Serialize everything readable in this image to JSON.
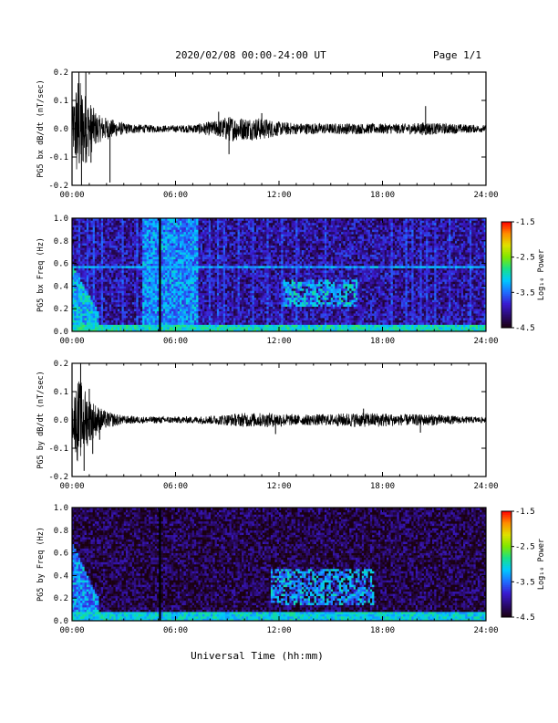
{
  "header": {
    "title": "2020/02/08  00:00-24:00 UT",
    "page": "Page 1/1"
  },
  "footer": {
    "xlabel": "Universal Time (hh:mm)"
  },
  "colors": {
    "trace": "#000000",
    "colormap": [
      "#1a0010",
      "#2a0a6e",
      "#3a1ad0",
      "#1f6cff",
      "#00c8ff",
      "#18e08a",
      "#7fe800",
      "#e0e000",
      "#ff8c00",
      "#ff0000"
    ]
  },
  "chart_data": [
    {
      "type": "line",
      "ylabel": "PG5 bx dB/dt (nT/sec)",
      "xlim": [
        0,
        24
      ],
      "ylim": [
        -0.2,
        0.2
      ],
      "xticks": [
        "00:00",
        "06:00",
        "12:00",
        "18:00",
        "24:00"
      ],
      "yticks": [
        "-0.2",
        "-0.1",
        "0.0",
        "0.1",
        "0.2"
      ],
      "envelope": {
        "x_hours": [
          0,
          0.3,
          0.6,
          1.0,
          1.5,
          2.0,
          3.0,
          4.0,
          5.0,
          6.0,
          7.0,
          8.0,
          8.5,
          9.0,
          10.0,
          11.0,
          12.0,
          13.0,
          14.0,
          15.0,
          16.0,
          17.0,
          18.0,
          19.0,
          20.0,
          20.5,
          21.0,
          22.0,
          23.0,
          24.0
        ],
        "half_amplitude": [
          0.06,
          0.2,
          0.15,
          0.1,
          0.05,
          0.04,
          0.02,
          0.015,
          0.012,
          0.012,
          0.015,
          0.025,
          0.03,
          0.045,
          0.04,
          0.04,
          0.025,
          0.02,
          0.02,
          0.018,
          0.02,
          0.018,
          0.018,
          0.018,
          0.02,
          0.025,
          0.02,
          0.018,
          0.015,
          0.012
        ]
      },
      "spikes": [
        [
          0.4,
          0.2
        ],
        [
          0.55,
          -0.2
        ],
        [
          0.8,
          0.2
        ],
        [
          1.1,
          -0.12
        ],
        [
          2.2,
          -0.19
        ],
        [
          8.5,
          0.06
        ],
        [
          9.1,
          -0.09
        ],
        [
          11.0,
          0.055
        ],
        [
          20.5,
          0.08
        ]
      ]
    },
    {
      "type": "heatmap",
      "ylabel": "PG5 bx Freq (Hz)",
      "xlim": [
        0,
        24
      ],
      "ylim": [
        0,
        1
      ],
      "xticks": [
        "00:00",
        "06:00",
        "12:00",
        "18:00",
        "24:00"
      ],
      "yticks": [
        "0.0",
        "0.2",
        "0.4",
        "0.6",
        "0.8",
        "1.0"
      ],
      "colorbar": {
        "label": "Log₁₀ Power",
        "ticks": [
          "-1.5",
          "-2.5",
          "-3.5",
          "-4.5"
        ],
        "range": [
          -4.5,
          -1.5
        ]
      },
      "base_log_power": -4.0,
      "features": [
        {
          "kind": "low_freq_band",
          "freq_max": 0.06,
          "log_power": -3.0
        },
        {
          "kind": "early_burst",
          "time_range": [
            0,
            1.5
          ],
          "freq_max": 0.6,
          "log_power": -3.2
        },
        {
          "kind": "broadband_block",
          "time_range": [
            4.1,
            7.3
          ],
          "log_power": -3.4
        },
        {
          "kind": "gap",
          "time_range": [
            5.0,
            5.1
          ]
        },
        {
          "kind": "line_harmonic",
          "freq": 0.57,
          "log_power": -3.3
        },
        {
          "kind": "periodic_stripes",
          "period_hours": 0.42,
          "log_power": -3.7
        },
        {
          "kind": "wave_event",
          "time_range": [
            12.2,
            16.6
          ],
          "freq_range": [
            0.22,
            0.45
          ],
          "log_power": -3.2
        }
      ]
    },
    {
      "type": "line",
      "ylabel": "PG5 by dB/dt (nT/sec)",
      "xlim": [
        0,
        24
      ],
      "ylim": [
        -0.2,
        0.2
      ],
      "xticks": [
        "00:00",
        "06:00",
        "12:00",
        "18:00",
        "24:00"
      ],
      "yticks": [
        "-0.2",
        "-0.1",
        "0.0",
        "0.1",
        "0.2"
      ],
      "envelope": {
        "x_hours": [
          0,
          0.3,
          0.6,
          1.0,
          1.5,
          2.0,
          3.0,
          4.0,
          5.0,
          6.0,
          7.0,
          8.0,
          9.0,
          10.0,
          11.0,
          12.0,
          13.0,
          14.0,
          15.0,
          16.0,
          17.0,
          18.0,
          19.0,
          20.0,
          21.0,
          22.0,
          23.0,
          24.0
        ],
        "half_amplitude": [
          0.05,
          0.15,
          0.13,
          0.08,
          0.05,
          0.03,
          0.015,
          0.012,
          0.012,
          0.012,
          0.012,
          0.015,
          0.02,
          0.025,
          0.025,
          0.025,
          0.018,
          0.02,
          0.02,
          0.025,
          0.025,
          0.025,
          0.02,
          0.02,
          0.02,
          0.015,
          0.012,
          0.01
        ]
      },
      "spikes": [
        [
          0.5,
          0.2
        ],
        [
          0.7,
          -0.18
        ],
        [
          1.0,
          0.11
        ],
        [
          1.2,
          -0.12
        ],
        [
          1.6,
          -0.07
        ],
        [
          11.8,
          -0.05
        ],
        [
          16.9,
          0.04
        ],
        [
          20.2,
          -0.045
        ]
      ]
    },
    {
      "type": "heatmap",
      "ylabel": "PG5 by Freq (Hz)",
      "xlim": [
        0,
        24
      ],
      "ylim": [
        0,
        1
      ],
      "xticks": [
        "00:00",
        "06:00",
        "12:00",
        "18:00",
        "24:00"
      ],
      "yticks": [
        "0.0",
        "0.2",
        "0.4",
        "0.6",
        "0.8",
        "1.0"
      ],
      "colorbar": {
        "label": "Log₁₀ Power",
        "ticks": [
          "-1.5",
          "-2.5",
          "-3.5",
          "-4.5"
        ],
        "range": [
          -4.5,
          -1.5
        ]
      },
      "base_log_power": -4.3,
      "features": [
        {
          "kind": "low_freq_band",
          "freq_max": 0.08,
          "log_power": -3.1
        },
        {
          "kind": "early_burst",
          "time_range": [
            0,
            1.5
          ],
          "freq_max": 0.7,
          "log_power": -3.4
        },
        {
          "kind": "gap",
          "time_range": [
            5.0,
            5.1
          ]
        },
        {
          "kind": "wave_event",
          "time_range": [
            11.5,
            17.5
          ],
          "freq_range": [
            0.15,
            0.45
          ],
          "log_power": -3.3
        }
      ]
    }
  ]
}
